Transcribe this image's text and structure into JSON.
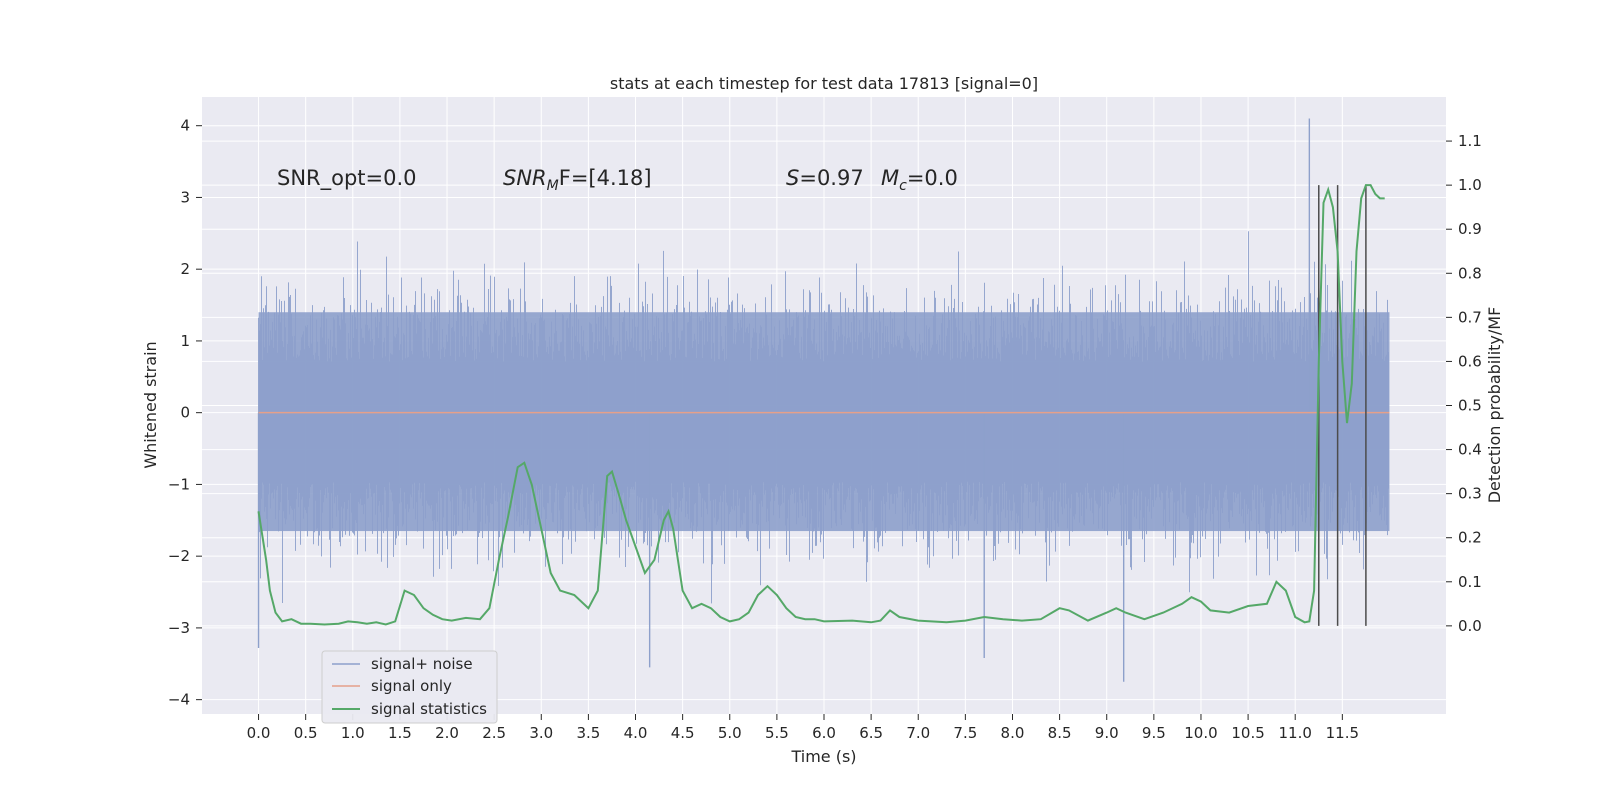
{
  "chart_data": {
    "type": "line",
    "title": "stats at each timestep for test data 17813 [signal=0]",
    "xlabel": "Time (s)",
    "ylabel": "Whitened strain",
    "ylabel_right": "Detection probability/MF",
    "xlim": [
      -0.6,
      12.6
    ],
    "ylim": [
      -4.2,
      4.4
    ],
    "ylim_right": [
      -0.2,
      1.2
    ],
    "x_ticks": [
      0.0,
      0.5,
      1.0,
      1.5,
      2.0,
      2.5,
      3.0,
      3.5,
      4.0,
      4.5,
      5.0,
      5.5,
      6.0,
      6.5,
      7.0,
      7.5,
      8.0,
      8.5,
      9.0,
      9.5,
      10.0,
      10.5,
      11.0,
      11.5
    ],
    "x_tick_labels": [
      "0.0",
      "0.5",
      "1.0",
      "1.5",
      "2.0",
      "2.5",
      "3.0",
      "3.5",
      "4.0",
      "4.5",
      "5.0",
      "5.5",
      "6.0",
      "6.5",
      "7.0",
      "7.5",
      "8.0",
      "8.5",
      "9.0",
      "9.5",
      "10.0",
      "10.5",
      "11.0",
      "11.5"
    ],
    "y_ticks": [
      4,
      3,
      2,
      1,
      0,
      -1,
      -2,
      -3,
      -4
    ],
    "y_tick_labels": [
      "4",
      "3",
      "2",
      "1",
      "0",
      "−1",
      "−2",
      "−3",
      "−4"
    ],
    "y_right_ticks": [
      1.1,
      1.0,
      0.9,
      0.8,
      0.7,
      0.6,
      0.5,
      0.4,
      0.3,
      0.2,
      0.1,
      0.0
    ],
    "y_right_tick_labels": [
      "1.1",
      "1.0",
      "0.9",
      "0.8",
      "0.7",
      "0.6",
      "0.5",
      "0.4",
      "0.3",
      "0.2",
      "0.1",
      "0.0"
    ],
    "grid": true,
    "legend_position": "lower-left",
    "annotations": {
      "snr_opt": "SNR_opt=0.0",
      "snr_mf_main": "SNR",
      "snr_mf_sub": "M",
      "snr_mf_rest": "F=[4.18]",
      "s_main": "S",
      "s_rest": "=0.97",
      "mc_main": "M",
      "mc_sub": "c",
      "mc_rest": "=0.0"
    },
    "series": [
      {
        "name": "signal+ noise",
        "color": "#8da0cb",
        "axis": "left",
        "x_range": [
          0.0,
          12.0
        ],
        "envelope_typical": [
          -1.65,
          1.4
        ],
        "extreme_min": -3.75,
        "extreme_max": 4.1
      },
      {
        "name": "signal only",
        "color": "#e5a08a",
        "axis": "left",
        "x": [
          0.0,
          12.0
        ],
        "values": [
          0.0,
          0.0
        ]
      },
      {
        "name": "signal statistics",
        "color": "#55a868",
        "axis": "right",
        "x": [
          0.0,
          0.08,
          0.12,
          0.18,
          0.25,
          0.35,
          0.45,
          0.55,
          0.7,
          0.85,
          0.95,
          1.05,
          1.15,
          1.25,
          1.35,
          1.45,
          1.55,
          1.65,
          1.75,
          1.85,
          1.95,
          2.05,
          2.2,
          2.35,
          2.45,
          2.55,
          2.65,
          2.75,
          2.82,
          2.9,
          3.0,
          3.1,
          3.2,
          3.35,
          3.5,
          3.6,
          3.7,
          3.75,
          3.82,
          3.9,
          4.0,
          4.1,
          4.2,
          4.3,
          4.35,
          4.4,
          4.5,
          4.6,
          4.7,
          4.8,
          4.9,
          5.0,
          5.1,
          5.2,
          5.3,
          5.4,
          5.5,
          5.6,
          5.7,
          5.8,
          5.9,
          6.0,
          6.3,
          6.5,
          6.6,
          6.7,
          6.8,
          7.0,
          7.3,
          7.5,
          7.7,
          7.9,
          8.1,
          8.3,
          8.5,
          8.6,
          8.8,
          9.0,
          9.1,
          9.2,
          9.4,
          9.6,
          9.8,
          9.9,
          10.0,
          10.1,
          10.3,
          10.5,
          10.7,
          10.8,
          10.9,
          11.0,
          11.1,
          11.15,
          11.2,
          11.25,
          11.3,
          11.35,
          11.4,
          11.45,
          11.5,
          11.55,
          11.6,
          11.65,
          11.7,
          11.75,
          11.8,
          11.85,
          11.9,
          11.95
        ],
        "values": [
          0.26,
          0.15,
          0.08,
          0.03,
          0.01,
          0.015,
          0.005,
          0.005,
          0.003,
          0.005,
          0.01,
          0.008,
          0.005,
          0.008,
          0.003,
          0.01,
          0.08,
          0.07,
          0.04,
          0.025,
          0.015,
          0.012,
          0.018,
          0.015,
          0.04,
          0.15,
          0.25,
          0.36,
          0.37,
          0.32,
          0.22,
          0.12,
          0.08,
          0.07,
          0.04,
          0.08,
          0.34,
          0.35,
          0.3,
          0.24,
          0.18,
          0.12,
          0.15,
          0.24,
          0.26,
          0.22,
          0.08,
          0.04,
          0.05,
          0.04,
          0.02,
          0.01,
          0.015,
          0.03,
          0.07,
          0.09,
          0.07,
          0.04,
          0.02,
          0.015,
          0.015,
          0.01,
          0.012,
          0.008,
          0.012,
          0.035,
          0.02,
          0.012,
          0.008,
          0.012,
          0.02,
          0.015,
          0.012,
          0.015,
          0.04,
          0.035,
          0.012,
          0.03,
          0.04,
          0.03,
          0.015,
          0.03,
          0.05,
          0.065,
          0.055,
          0.035,
          0.03,
          0.045,
          0.05,
          0.1,
          0.08,
          0.02,
          0.008,
          0.01,
          0.08,
          0.6,
          0.96,
          0.99,
          0.95,
          0.85,
          0.6,
          0.46,
          0.55,
          0.85,
          0.97,
          1.0,
          1.0,
          0.98,
          0.97,
          0.97
        ],
        "spikes_x": [
          11.25,
          11.45,
          11.75
        ]
      }
    ]
  }
}
